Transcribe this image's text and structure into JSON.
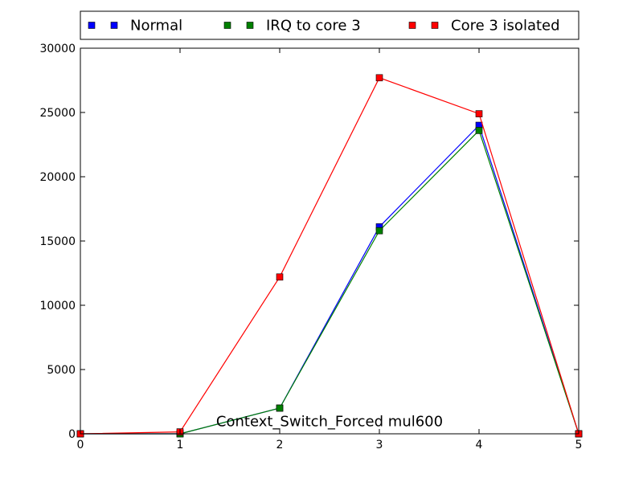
{
  "chart_data": {
    "type": "line",
    "title": "",
    "xlabel": "",
    "ylabel": "",
    "xlim": [
      0,
      5
    ],
    "ylim": [
      0,
      30000
    ],
    "x_ticks": [
      "0",
      "1",
      "2",
      "3",
      "4",
      "5"
    ],
    "y_ticks": [
      "0",
      "5000",
      "10000",
      "15000",
      "20000",
      "25000",
      "30000"
    ],
    "grid": false,
    "legend_placement": "top",
    "annotation": "Context_Switch_Forced mul600",
    "series": [
      {
        "name": "Normal",
        "color": "#0000ff",
        "marker": "square",
        "x": [
          0,
          1,
          2,
          3,
          4,
          5
        ],
        "y": [
          0,
          0,
          2000,
          16100,
          24000,
          0
        ]
      },
      {
        "name": "IRQ to core 3",
        "color": "#008000",
        "marker": "square",
        "x": [
          0,
          1,
          2,
          3,
          4,
          5
        ],
        "y": [
          0,
          0,
          2000,
          15800,
          23600,
          0
        ]
      },
      {
        "name": "Core 3 isolated",
        "color": "#ff0000",
        "marker": "square",
        "x": [
          0,
          1,
          2,
          3,
          4,
          5
        ],
        "y": [
          0,
          150,
          12200,
          27700,
          24900,
          0
        ]
      }
    ]
  }
}
